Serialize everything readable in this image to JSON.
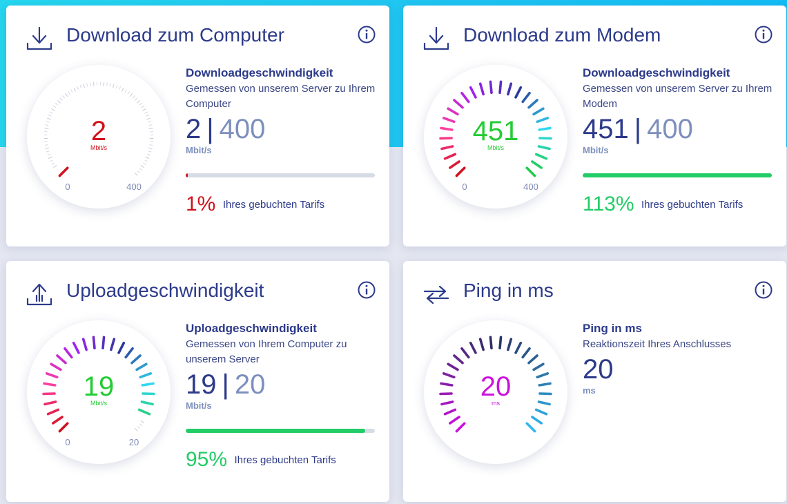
{
  "cards": [
    {
      "title": "Download zum Computer",
      "icon": "download-icon",
      "metric_title": "Downloadgeschwindigkeit",
      "metric_desc": "Gemessen von unserem Server zu Ihrem Computer",
      "measured": "2",
      "booked": "400",
      "separator": "|",
      "unit": "Mbit/s",
      "gauge": {
        "value": 2,
        "min": 0,
        "max": 400,
        "min_label": "0",
        "max_label": "400",
        "value_text": "2",
        "unit_text": "Mbit/s",
        "value_color": "#d0121c"
      },
      "progress_fraction": 0.01,
      "progress_color": "#d0121c",
      "percent_text": "1%",
      "percent_label": "Ihres gebuchten Tarifs",
      "percent_color": "#d0121c"
    },
    {
      "title": "Download zum Modem",
      "icon": "download-icon",
      "metric_title": "Downloadgeschwindigkeit",
      "metric_desc": "Gemessen von unserem Server zu Ihrem Modem",
      "measured": "451",
      "booked": "400",
      "separator": "|",
      "unit": "Mbit/s",
      "gauge": {
        "value": 451,
        "min": 0,
        "max": 400,
        "min_label": "0",
        "max_label": "400",
        "value_text": "451",
        "unit_text": "Mbit/s",
        "value_color": "#22cc33"
      },
      "progress_fraction": 1.0,
      "progress_color": "#22cc66",
      "percent_text": "113%",
      "percent_label": "Ihres gebuchten Tarifs",
      "percent_color": "#22cc66"
    },
    {
      "title": "Uploadgeschwindigkeit",
      "icon": "upload-icon",
      "metric_title": "Uploadgeschwindigkeit",
      "metric_desc": "Gemessen von Ihrem Computer zu unserem Server",
      "measured": "19",
      "booked": "20",
      "separator": "|",
      "unit": "Mbit/s",
      "gauge": {
        "value": 19,
        "min": 0,
        "max": 20,
        "min_label": "0",
        "max_label": "20",
        "value_text": "19",
        "unit_text": "Mbit/s",
        "value_color": "#22cc33"
      },
      "progress_fraction": 0.95,
      "progress_color": "#22cc66",
      "percent_text": "95%",
      "percent_label": "Ihres gebuchten Tarifs",
      "percent_color": "#22cc66"
    },
    {
      "title": "Ping in ms",
      "icon": "ping-arrows-icon",
      "metric_title": "Ping in ms",
      "metric_desc": "Reaktionszeit Ihres Anschlusses",
      "measured": "20",
      "unit": "ms",
      "gauge": {
        "value": 20,
        "value_text": "20",
        "unit_text": "ms",
        "value_color": "#cc11dd"
      }
    }
  ],
  "colors": {
    "title": "#2c3a8a",
    "muted": "#7d8fbd",
    "top_band": "#1fc6f0",
    "speed_scale": [
      "#d0121c",
      "#ff3fa0",
      "#a020f0",
      "#283a9a",
      "#30d8f0",
      "#22cc44"
    ],
    "ping_scale": [
      "#cc11dd",
      "#283060",
      "#30b8f0"
    ]
  }
}
